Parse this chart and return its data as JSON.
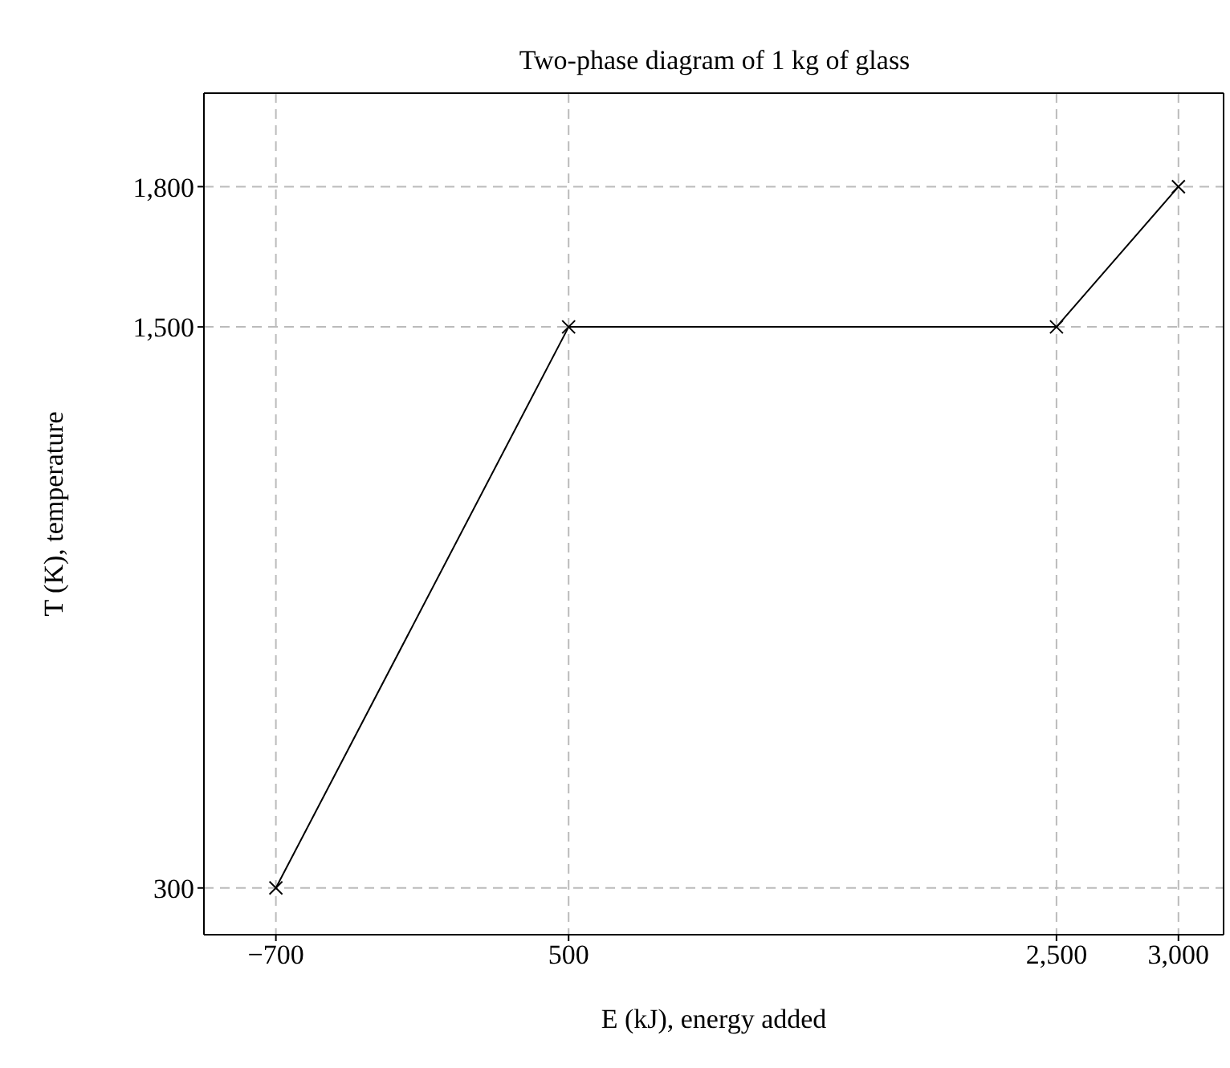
{
  "chart_data": {
    "type": "line",
    "title": "Two-phase diagram of 1 kg of glass",
    "xlabel": "E (kJ), energy added",
    "ylabel": "T (K), temperature",
    "x": [
      -700,
      500,
      2500,
      3000
    ],
    "series": [
      {
        "color": "#000000",
        "values": [
          300,
          1500,
          1500,
          1800
        ]
      }
    ],
    "xlim": [
      -995,
      3185
    ],
    "xticks": [
      {
        "value": -700,
        "label": "−700"
      },
      500,
      {
        "value": 2500,
        "label": "2,500"
      },
      {
        "value": 3000,
        "label": "3,000"
      }
    ],
    "ylim": [
      200,
      2000
    ],
    "yticks": [
      300,
      {
        "value": 1500,
        "label": "1,500"
      },
      {
        "value": 1800,
        "label": "1,800"
      }
    ],
    "grid": true,
    "marker": "cross",
    "line_style": "solid"
  }
}
